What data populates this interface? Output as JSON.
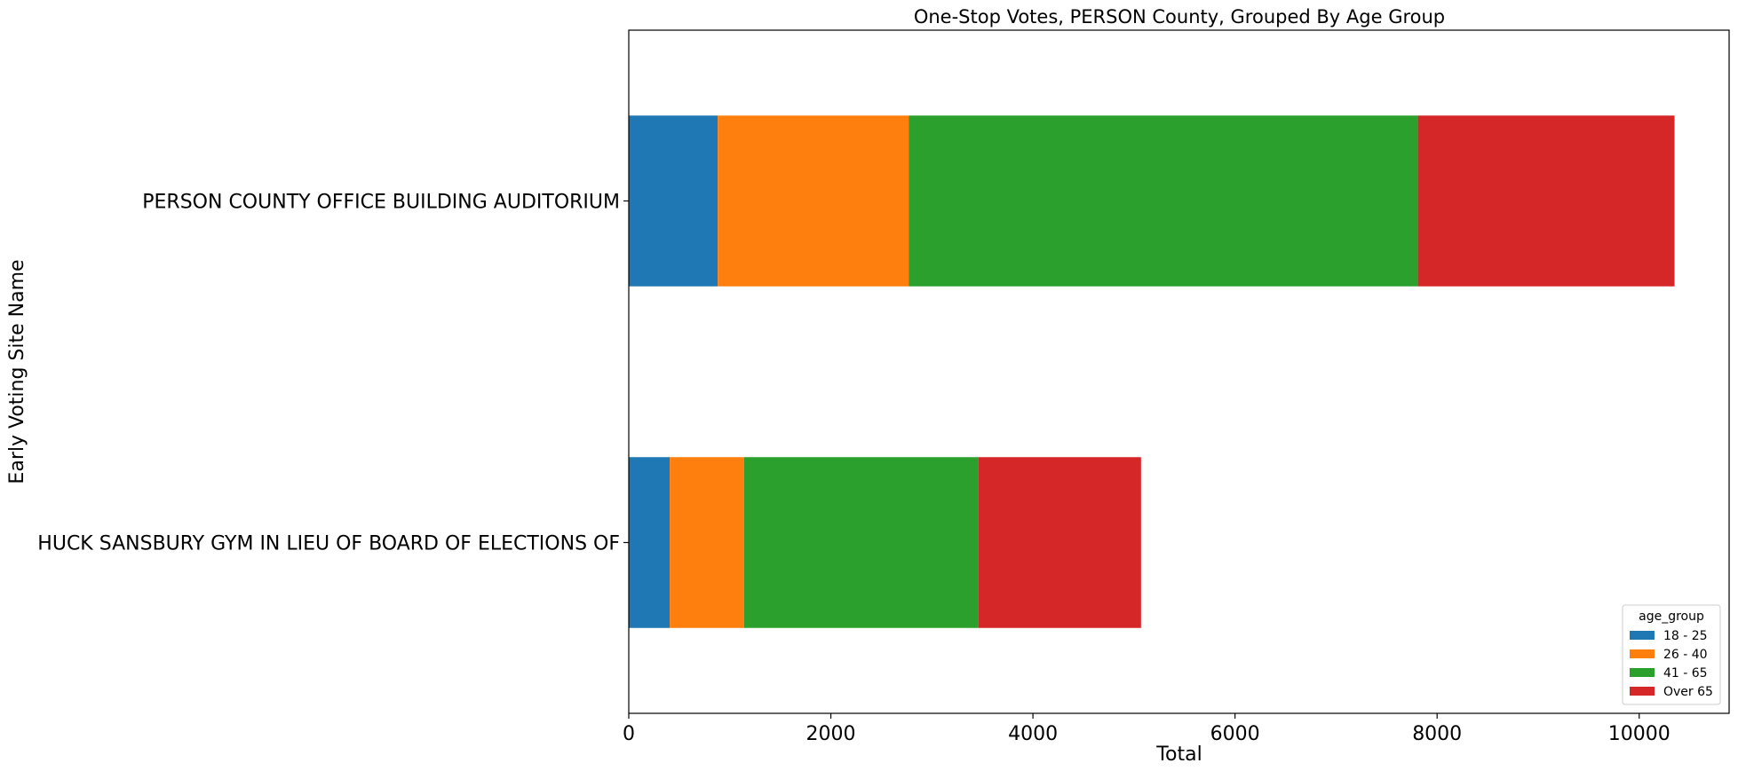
{
  "chart_data": {
    "type": "bar",
    "orientation": "horizontal",
    "stacked": true,
    "title": "One-Stop Votes, PERSON County, Grouped By Age Group",
    "xlabel": "Total",
    "ylabel": "Early Voting Site Name",
    "categories": [
      "HUCK SANSBURY GYM IN LIEU OF BOARD OF ELECTIONS OF",
      "PERSON COUNTY OFFICE BUILDING AUDITORIUM"
    ],
    "series": [
      {
        "name": "18 - 25",
        "color": "#1f77b4",
        "values": [
          405,
          880
        ]
      },
      {
        "name": "26 - 40",
        "color": "#ff7f0e",
        "values": [
          735,
          1890
        ]
      },
      {
        "name": "41 - 65",
        "color": "#2ca02c",
        "values": [
          2320,
          5040
        ]
      },
      {
        "name": "Over 65",
        "color": "#d62728",
        "values": [
          1610,
          2540
        ]
      }
    ],
    "xlim": [
      0,
      10890
    ],
    "xticks": [
      0,
      2000,
      4000,
      6000,
      8000,
      10000
    ],
    "xtick_labels": [
      "0",
      "2000",
      "4000",
      "6000",
      "8000",
      "10000"
    ],
    "grid": false,
    "legend": {
      "title": "age_group",
      "position": "lower right"
    }
  }
}
